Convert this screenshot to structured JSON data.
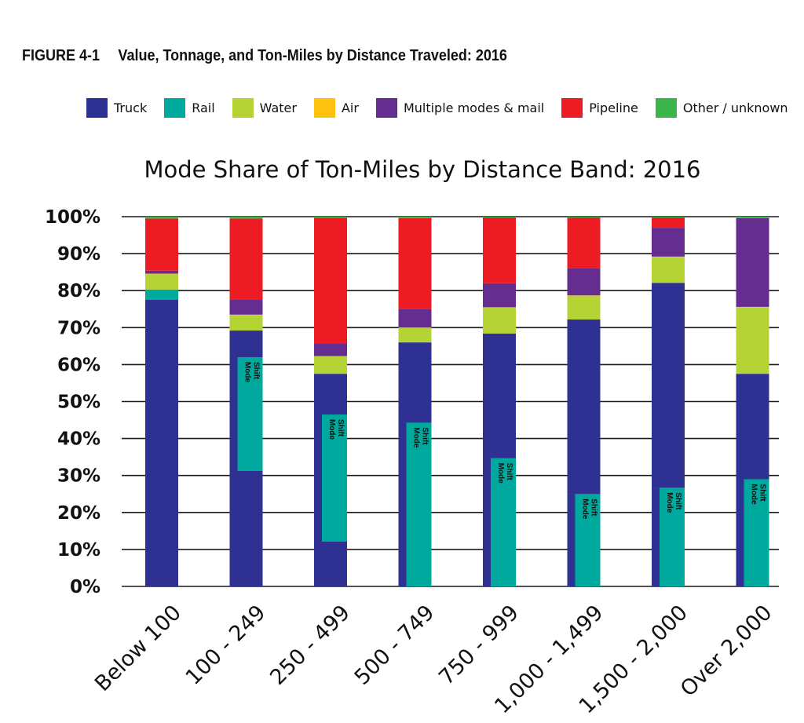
{
  "figure": {
    "number": "FIGURE 4-1",
    "caption": "Value, Tonnage, and Ton-Miles by Distance Traveled: 2016"
  },
  "legend": [
    {
      "label": "Truck",
      "color": "#2e3192"
    },
    {
      "label": "Rail",
      "color": "#00a99d"
    },
    {
      "label": "Water",
      "color": "#b5d334"
    },
    {
      "label": "Air",
      "color": "#fdc20f"
    },
    {
      "label": "Multiple modes & mail",
      "color": "#662d91"
    },
    {
      "label": "Pipeline",
      "color": "#ed1c24"
    },
    {
      "label": "Other / unknown",
      "color": "#39b54a"
    }
  ],
  "chart_data": {
    "type": "bar",
    "stacked": true,
    "title": "Mode Share of Ton-Miles by Distance Band: 2016",
    "categories": [
      "Below 100",
      "100 - 249",
      "250 - 499",
      "500 - 749",
      "750 - 999",
      "1,000 - 1,499",
      "1,500 - 2,000",
      "Over 2,000"
    ],
    "ylim": [
      0,
      100
    ],
    "yticks": [
      "0%",
      "10%",
      "20%",
      "30%",
      "40%",
      "50%",
      "60%",
      "70%",
      "80%",
      "90%",
      "100%"
    ],
    "grid": true,
    "legend_position": "top",
    "series": [
      {
        "name": "Truck",
        "color": "#2e3192",
        "values": [
          77.5,
          69.2,
          57.5,
          66.0,
          68.4,
          72.2,
          82.1,
          57.5
        ]
      },
      {
        "name": "Rail",
        "color": "#00a99d",
        "values": [
          2.8,
          0,
          0,
          0,
          0,
          0,
          0,
          0
        ]
      },
      {
        "name": "Water",
        "color": "#b5d334",
        "values": [
          4.2,
          4.2,
          4.7,
          4.0,
          7.0,
          6.4,
          7.0,
          18.0
        ]
      },
      {
        "name": "Air",
        "color": "#fdc20f",
        "values": [
          0.1,
          0.1,
          0.1,
          0.1,
          0.1,
          0.1,
          0.1,
          0.1
        ]
      },
      {
        "name": "Multiple modes & mail",
        "color": "#662d91",
        "values": [
          0.8,
          4.0,
          3.4,
          5.0,
          6.5,
          7.3,
          7.8,
          24.0
        ]
      },
      {
        "name": "Pipeline",
        "color": "#ed1c24",
        "values": [
          14.1,
          22.0,
          34.0,
          24.5,
          17.8,
          13.8,
          2.8,
          0
        ]
      },
      {
        "name": "Other / unknown",
        "color": "#39b54a",
        "values": [
          0.5,
          0.5,
          0.3,
          0.4,
          0.2,
          0.2,
          0.2,
          0.4
        ]
      }
    ],
    "mode_shift": {
      "label": "Mode Shift",
      "truck_share": [
        null,
        62.0,
        46.5,
        44.3,
        34.7,
        25.0,
        26.7,
        29.0
      ],
      "truck_remaining": [
        null,
        31.2,
        12.1,
        0,
        0,
        0,
        0,
        0
      ]
    }
  }
}
